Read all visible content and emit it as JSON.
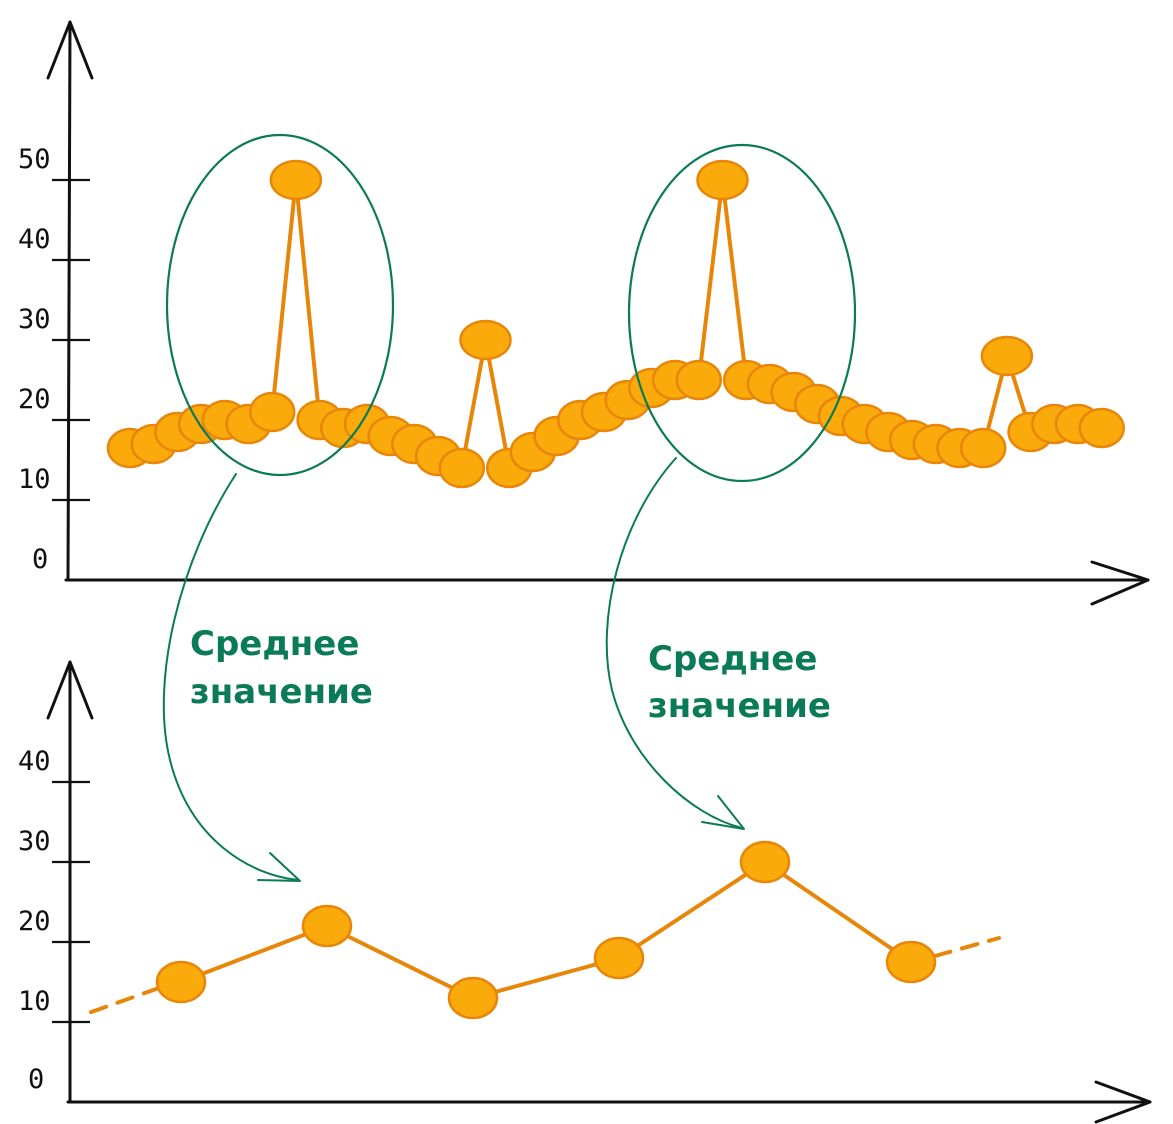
{
  "colors": {
    "axis": "#111111",
    "point_fill": "#fbaa0c",
    "point_stroke": "#e8860a",
    "line": "#e8860a",
    "annotation": "#0a7b56"
  },
  "chart_data": [
    {
      "type": "scatter",
      "title": "",
      "xlabel": "",
      "ylabel": "",
      "ylim": [
        0,
        60
      ],
      "yticks": [
        "0",
        "10",
        "20",
        "30",
        "40",
        "50"
      ],
      "x": [
        0,
        1,
        2,
        3,
        4,
        5,
        6,
        7,
        8,
        9,
        10,
        11,
        12,
        13,
        14,
        15,
        16,
        17,
        18,
        19,
        20,
        21,
        22,
        23,
        24,
        25,
        26,
        27,
        28,
        29,
        30,
        31,
        32,
        33,
        34,
        35,
        36,
        37,
        38,
        39,
        40,
        41
      ],
      "values": [
        16.5,
        17,
        18.5,
        19.5,
        20,
        19.5,
        21,
        50,
        20,
        19,
        19.5,
        18,
        17,
        15.5,
        14,
        30,
        14,
        16,
        18,
        20,
        21,
        22.5,
        24,
        25,
        25,
        50,
        25,
        24.5,
        23.5,
        22,
        20.5,
        19.5,
        18.5,
        17.5,
        17,
        16.5,
        16.5,
        28,
        18.5,
        19.5,
        19.5,
        19
      ]
    },
    {
      "type": "line",
      "title": "",
      "xlabel": "",
      "ylabel": "",
      "ylim": [
        0,
        45
      ],
      "yticks": [
        "0",
        "10",
        "20",
        "30",
        "40"
      ],
      "x": [
        1,
        2,
        3,
        4,
        5,
        6
      ],
      "values": [
        15,
        22,
        13,
        18,
        30,
        17.5
      ],
      "dashed_ends": true
    }
  ],
  "annotations": [
    {
      "line1": "Среднее",
      "line2": "значение"
    },
    {
      "line1": "Среднее",
      "line2": "значение"
    }
  ]
}
